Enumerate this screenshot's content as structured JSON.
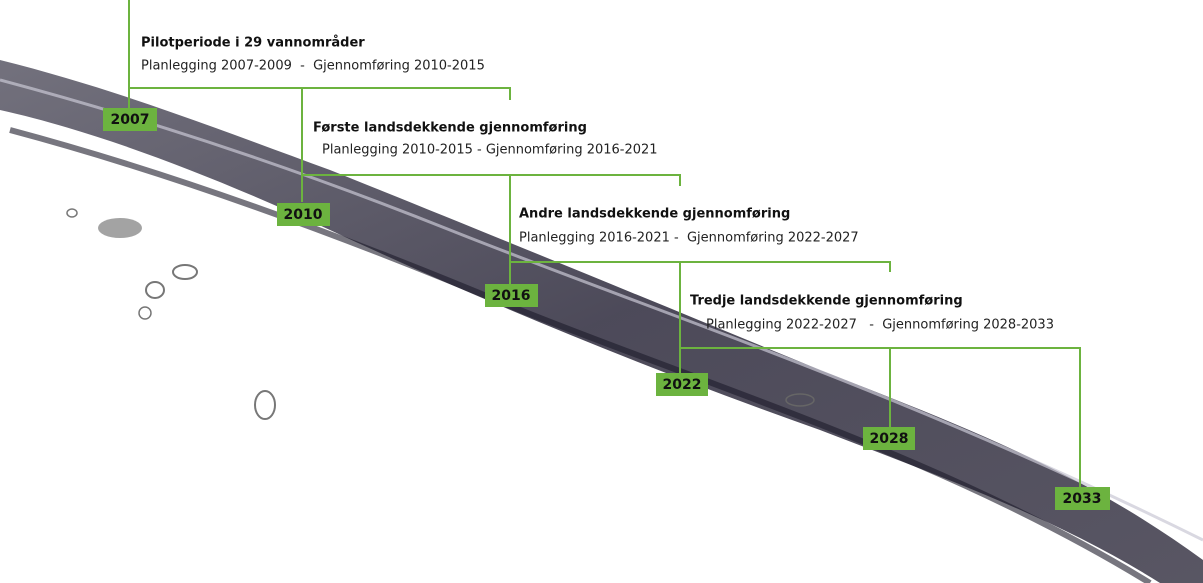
{
  "phases": [
    {
      "title": "Pilotperiode i 29 vannområder",
      "description": "Planlegging 2007-2009  -  Gjennomføring 2010-2015"
    },
    {
      "title": "Første landsdekkende gjennomføring",
      "description": "Planlegging 2010-2015 - Gjennomføring 2016-2021"
    },
    {
      "title": "Andre landsdekkende gjennomføring",
      "description": "Planlegging 2016-2021 -  Gjennomføring 2022-2027"
    },
    {
      "title": "Tredje landsdekkende gjennomføring",
      "description": "Planlegging 2022-2027   -  Gjennomføring 2028-2033"
    }
  ],
  "years": [
    "2007",
    "2010",
    "2016",
    "2022",
    "2028",
    "2033"
  ]
}
